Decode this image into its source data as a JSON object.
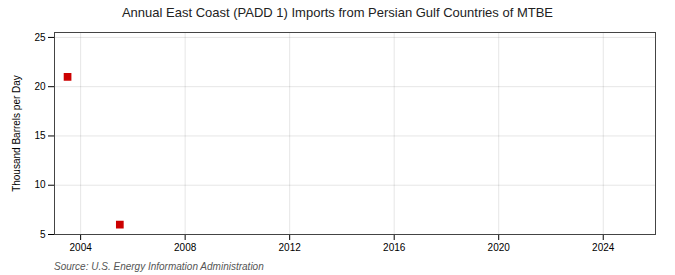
{
  "chart_data": {
    "type": "scatter",
    "title": "Annual East Coast (PADD 1) Imports from Persian Gulf Countries of MTBE",
    "ylabel": "Thousand Barrels per Day",
    "source": "Source: U.S. Energy Information Administration",
    "x": [
      2003.5,
      2005.5
    ],
    "values": [
      21.0,
      6.0
    ],
    "color": "#cc0000",
    "marker": "square",
    "xlim": [
      2003.0,
      2026.0
    ],
    "xticks": [
      2004,
      2008,
      2012,
      2016,
      2020,
      2024
    ],
    "ylim": [
      5,
      25.5
    ],
    "yticks": [
      5,
      10,
      15,
      20,
      25
    ],
    "grid": true
  }
}
